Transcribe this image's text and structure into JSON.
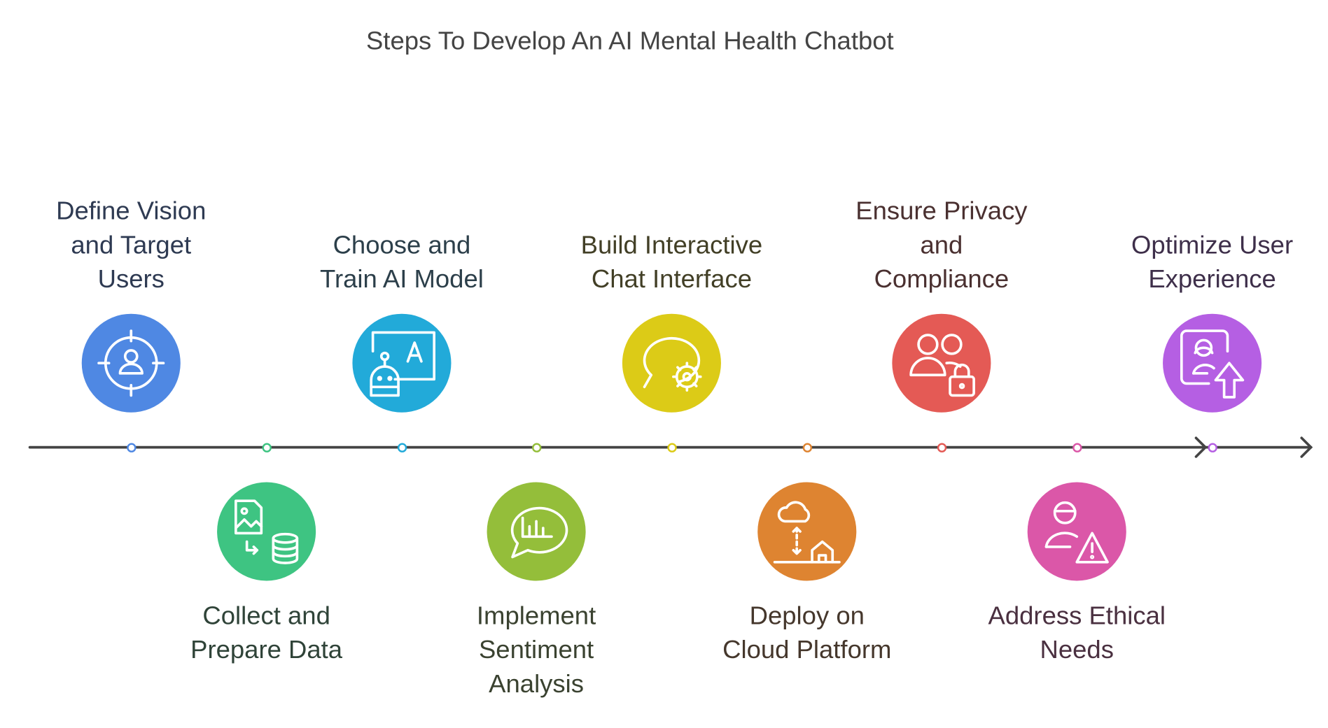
{
  "title": "Steps To Develop An AI Mental Health Chatbot",
  "steps": [
    {
      "label": "Define Vision and Target Users",
      "lines": [
        "Define Vision",
        "and Target",
        "Users"
      ],
      "color": "#4F88E3",
      "text_color": "#2E3A52",
      "icon": "target-user-icon",
      "position": "top"
    },
    {
      "label": "Collect and Prepare Data",
      "lines": [
        "Collect and",
        "Prepare Data"
      ],
      "color": "#3EC482",
      "text_color": "#2F4338",
      "icon": "image-database-icon",
      "position": "bottom"
    },
    {
      "label": "Choose and Train AI Model",
      "lines": [
        "Choose and",
        "Train AI Model"
      ],
      "color": "#22AAD9",
      "text_color": "#2C3F4A",
      "icon": "robot-board-icon",
      "position": "top"
    },
    {
      "label": "Implement Sentiment Analysis",
      "lines": [
        "Implement",
        "Sentiment",
        "Analysis"
      ],
      "color": "#94BE3A",
      "text_color": "#3A4230",
      "icon": "chat-chart-icon",
      "position": "bottom"
    },
    {
      "label": "Build Interactive Chat Interface",
      "lines": [
        "Build Interactive",
        "Chat Interface"
      ],
      "color": "#DCCB17",
      "text_color": "#423F26",
      "icon": "chat-gear-icon",
      "position": "top"
    },
    {
      "label": "Deploy on Cloud Platform",
      "lines": [
        "Deploy on",
        "Cloud Platform"
      ],
      "color": "#DE8431",
      "text_color": "#45372C",
      "icon": "cloud-deploy-icon",
      "position": "bottom"
    },
    {
      "label": "Ensure Privacy and Compliance",
      "lines": [
        "Ensure Privacy",
        "and",
        "Compliance"
      ],
      "color": "#E45A55",
      "text_color": "#4A3030",
      "icon": "users-lock-icon",
      "position": "top"
    },
    {
      "label": "Address Ethical Needs",
      "lines": [
        "Address Ethical",
        "Needs"
      ],
      "color": "#DB57A8",
      "text_color": "#4A3040",
      "icon": "user-warning-icon",
      "position": "bottom"
    },
    {
      "label": "Optimize User Experience",
      "lines": [
        "Optimize User",
        "Experience"
      ],
      "color": "#B55FE3",
      "text_color": "#3E2F4A",
      "icon": "user-upgrade-icon",
      "position": "top"
    }
  ],
  "axis_color": "#444444"
}
